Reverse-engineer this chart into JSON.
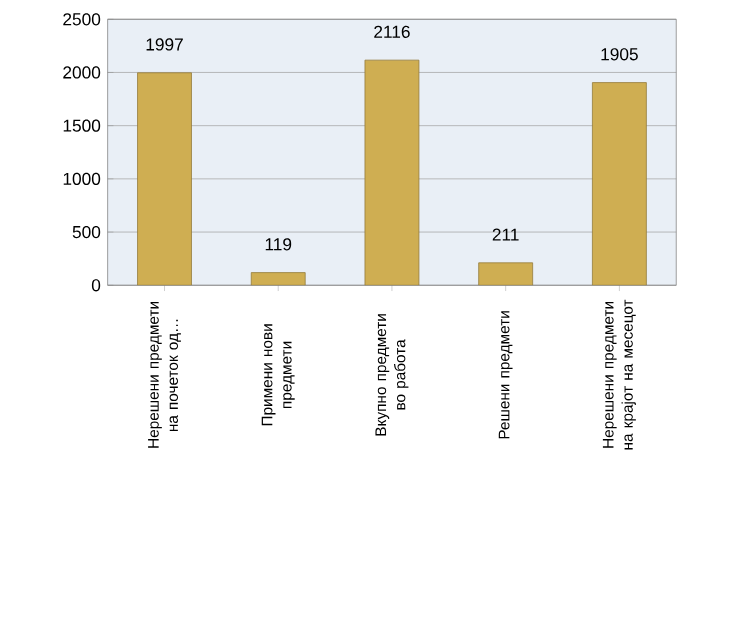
{
  "chart_data": {
    "type": "bar",
    "categories": [
      "Нерешени предмети на почеток од…",
      "Примени нови предмети",
      "Вкупно предмети во работа",
      "Решени предмети",
      "Нерешени предмети на крајот на месецот"
    ],
    "values": [
      1997,
      119,
      2116,
      211,
      1905
    ],
    "color": "#cfae52",
    "ylim": [
      0,
      2500
    ],
    "yticks": [
      0,
      500,
      1000,
      1500,
      2000,
      2500
    ],
    "grid": "y",
    "data_labels": true
  }
}
